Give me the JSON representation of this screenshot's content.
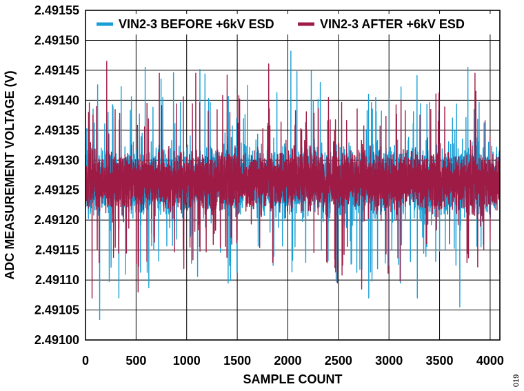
{
  "figure_id": "019",
  "chart_data": {
    "type": "line",
    "xlabel": "SAMPLE COUNT",
    "ylabel": "ADC MEASUREMENT VOLTAGE (V)",
    "xlim": [
      0,
      4096
    ],
    "ylim": [
      2.491,
      2.49155
    ],
    "x_ticks": [
      "0",
      "500",
      "1000",
      "1500",
      "2000",
      "2500",
      "3000",
      "3500",
      "4000"
    ],
    "x_tick_values": [
      0,
      500,
      1000,
      1500,
      2000,
      2500,
      3000,
      3500,
      4000
    ],
    "y_ticks": [
      "2.49100",
      "2.49105",
      "2.49110",
      "2.49115",
      "2.49120",
      "2.49125",
      "2.49130",
      "2.49135",
      "2.49140",
      "2.49145",
      "2.49150",
      "2.49155"
    ],
    "y_tick_values": [
      2.491,
      2.49105,
      2.4911,
      2.49115,
      2.4912,
      2.49125,
      2.4913,
      2.49135,
      2.4914,
      2.49145,
      2.4915,
      2.49155
    ],
    "grid": true,
    "legend_position": "top",
    "sample_count": 4096,
    "series": [
      {
        "name": "VIN2-3 BEFORE +6kV ESD",
        "color": "#1a9fd4",
        "center": 2.491265,
        "typical_range": [
          2.49117,
          2.49137
        ],
        "max": 2.491482,
        "min": 2.491034,
        "extremes": [
          {
            "x": 140,
            "y": 2.491034
          },
          {
            "x": 330,
            "y": 2.49107
          },
          {
            "x": 590,
            "y": 2.491455
          },
          {
            "x": 1410,
            "y": 2.491095
          },
          {
            "x": 2030,
            "y": 2.491482
          },
          {
            "x": 2090,
            "y": 2.491448
          },
          {
            "x": 2800,
            "y": 2.49107
          },
          {
            "x": 3280,
            "y": 2.49107
          },
          {
            "x": 3780,
            "y": 2.491455
          },
          {
            "x": 4095,
            "y": 2.49111
          }
        ]
      },
      {
        "name": "VIN2-3 AFTER +6kV ESD",
        "color": "#9e1b45",
        "center": 2.491265,
        "typical_range": [
          2.49119,
          2.49136
        ],
        "max": 2.491465,
        "min": 2.49107,
        "extremes": [
          {
            "x": 65,
            "y": 2.49107
          },
          {
            "x": 210,
            "y": 2.491465
          },
          {
            "x": 520,
            "y": 2.49108
          },
          {
            "x": 730,
            "y": 2.491445
          },
          {
            "x": 1090,
            "y": 2.491445
          },
          {
            "x": 1400,
            "y": 2.491442
          },
          {
            "x": 2490,
            "y": 2.491095
          },
          {
            "x": 2730,
            "y": 2.491085
          },
          {
            "x": 3110,
            "y": 2.491098
          },
          {
            "x": 3850,
            "y": 2.491445
          }
        ]
      }
    ]
  }
}
